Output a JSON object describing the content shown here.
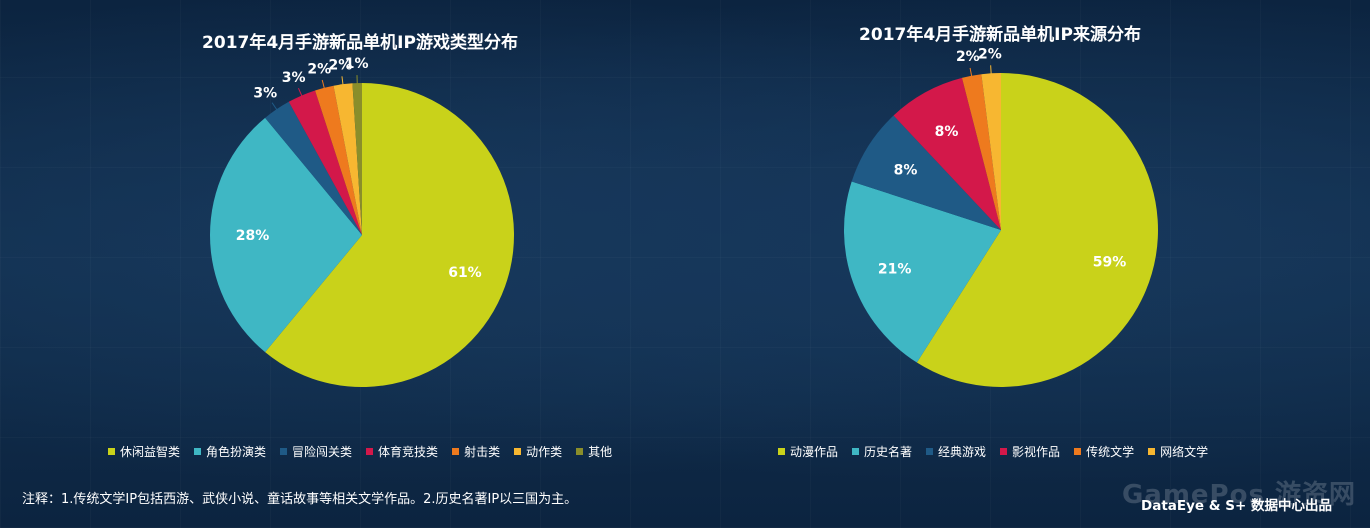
{
  "note": "注释：1.传统文学IP包括西游、武侠小说、童话故事等相关文学作品。2.历史名著IP以三国为主。",
  "credit": "DataEye & S+ 数据中心出品",
  "site_mark": "GamePos 游资网",
  "chart_data": [
    {
      "type": "pie",
      "title": "2017年4月手游新品单机IP游戏类型分布",
      "slices": [
        {
          "name": "休闲益智类",
          "value": 61,
          "label": "61%",
          "color": "#c9d21a"
        },
        {
          "name": "角色扮演类",
          "value": 28,
          "label": "28%",
          "color": "#3fb7c4"
        },
        {
          "name": "冒险闯关类",
          "value": 3,
          "label": "3%",
          "color": "#1f5a86"
        },
        {
          "name": "体育竞技类",
          "value": 3,
          "label": "3%",
          "color": "#d3184a"
        },
        {
          "name": "射击类",
          "value": 2,
          "label": "2%",
          "color": "#ee7a1e"
        },
        {
          "name": "动作类",
          "value": 2,
          "label": "2%",
          "color": "#f7b731"
        },
        {
          "name": "其他",
          "value": 1,
          "label": "1%",
          "color": "#8a8e2a"
        }
      ]
    },
    {
      "type": "pie",
      "title": "2017年4月手游新品单机IP来源分布",
      "slices": [
        {
          "name": "动漫作品",
          "value": 59,
          "label": "59%",
          "color": "#c9d21a"
        },
        {
          "name": "历史名著",
          "value": 21,
          "label": "21%",
          "color": "#3fb7c4"
        },
        {
          "name": "经典游戏",
          "value": 8,
          "label": "8%",
          "color": "#1f5a86"
        },
        {
          "name": "影视作品",
          "value": 8,
          "label": "8%",
          "color": "#d3184a"
        },
        {
          "name": "传统文学",
          "value": 2,
          "label": "2%",
          "color": "#ee7a1e"
        },
        {
          "name": "网络文学",
          "value": 2,
          "label": "2%",
          "color": "#f7b731"
        }
      ]
    }
  ]
}
